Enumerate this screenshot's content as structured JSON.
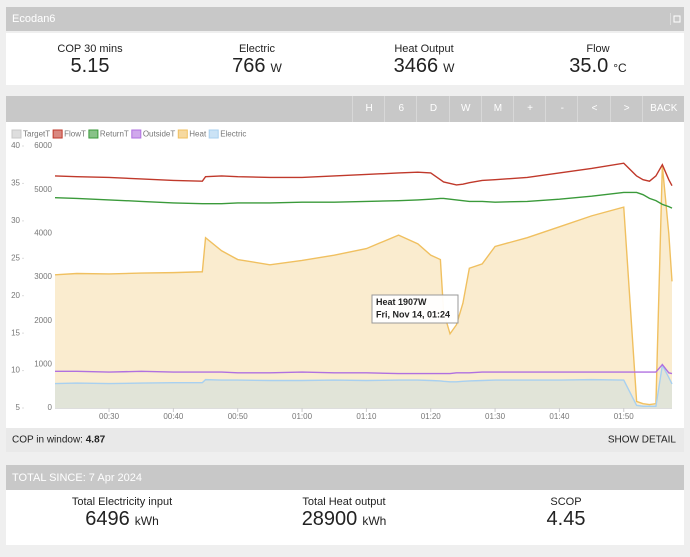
{
  "header": {
    "title": "Ecodan6"
  },
  "stats": [
    {
      "label": "COP 30 mins",
      "value": "5.15"
    },
    {
      "label": "Electric",
      "value": "766",
      "unit": "W"
    },
    {
      "label": "Heat Output",
      "value": "3466",
      "unit": "W"
    },
    {
      "label": "Flow",
      "value": "35.0",
      "unit": "°C"
    }
  ],
  "toolbar": [
    "H",
    "6",
    "D",
    "W",
    "M",
    "+",
    "-",
    "<",
    ">",
    "BACK"
  ],
  "chart_data": {
    "type": "line",
    "legend": "top-left",
    "x": [
      21.6,
      25,
      30,
      35,
      40,
      44.5,
      45,
      47.5,
      50,
      55,
      60,
      65,
      70,
      75,
      78,
      80,
      81.5,
      82,
      83,
      84,
      85,
      86,
      88,
      90,
      95,
      100,
      105,
      110,
      112,
      113,
      114,
      115,
      116,
      117,
      117.5
    ],
    "xlim": [
      21.6,
      117.5
    ],
    "xticks": [
      {
        "value": 30,
        "label": "00:30"
      },
      {
        "value": 40,
        "label": "00:40"
      },
      {
        "value": 50,
        "label": "00:50"
      },
      {
        "value": 60,
        "label": "01:00"
      },
      {
        "value": 70,
        "label": "01:10"
      },
      {
        "value": 80,
        "label": "01:20"
      },
      {
        "value": 90,
        "label": "01:30"
      },
      {
        "value": 100,
        "label": "01:40"
      },
      {
        "value": 110,
        "label": "01:50"
      }
    ],
    "ylim": [
      5,
      40
    ],
    "yticks": [
      5,
      10,
      15,
      20,
      25,
      30,
      35,
      40
    ],
    "y2lim": [
      0,
      6000
    ],
    "y2ticks": [
      0,
      1000,
      2000,
      3000,
      4000,
      5000,
      6000
    ],
    "series": [
      {
        "name": "TargetT",
        "color": "#c8c8c8",
        "values": [
          null,
          null,
          null,
          null,
          null,
          null,
          null,
          null,
          null,
          null,
          null,
          null,
          null,
          null,
          null,
          null,
          null,
          null,
          null,
          null,
          null,
          null,
          null,
          null,
          null,
          null,
          null,
          null,
          null,
          null,
          null,
          null,
          null,
          null,
          null
        ]
      },
      {
        "name": "FlowT",
        "color": "#c0392b",
        "values": [
          36.0,
          35.9,
          35.8,
          35.6,
          35.4,
          35.3,
          35.9,
          36.0,
          35.9,
          35.8,
          35.8,
          36.0,
          36.2,
          36.4,
          36.5,
          36.4,
          35.5,
          35.2,
          35.0,
          34.8,
          34.9,
          35.1,
          35.4,
          35.5,
          35.8,
          36.4,
          37.0,
          37.7,
          36.0,
          35.5,
          35.3,
          36.0,
          37.5,
          35.5,
          34.7
        ]
      },
      {
        "name": "ReturnT",
        "color": "#3a9a3a",
        "values": [
          33.1,
          33.0,
          32.8,
          32.6,
          32.4,
          32.3,
          32.3,
          32.3,
          32.4,
          32.4,
          32.5,
          32.5,
          32.6,
          32.7,
          32.8,
          32.9,
          33.0,
          33.0,
          32.9,
          32.8,
          32.7,
          32.6,
          32.6,
          32.5,
          32.6,
          32.9,
          33.3,
          33.8,
          33.8,
          33.5,
          33.0,
          32.7,
          32.2,
          31.9,
          31.7
        ]
      },
      {
        "name": "OutsideT",
        "color": "#b070e0",
        "values": [
          9.9,
          9.9,
          9.8,
          9.9,
          9.8,
          9.8,
          9.8,
          9.8,
          9.7,
          9.7,
          9.8,
          9.7,
          9.7,
          9.6,
          9.6,
          9.6,
          9.6,
          9.6,
          9.6,
          9.7,
          9.7,
          9.7,
          9.8,
          9.8,
          9.8,
          9.8,
          9.8,
          9.8,
          9.8,
          9.8,
          9.8,
          9.8,
          10.8,
          9.7,
          9.6
        ]
      },
      {
        "name": "Heat",
        "color": "#f0c060",
        "axis": "y2",
        "fill": true,
        "values": [
          3050,
          3080,
          3070,
          3090,
          3100,
          3120,
          3900,
          3600,
          3400,
          3280,
          3380,
          3500,
          3650,
          3960,
          3760,
          3500,
          3400,
          2200,
          1700,
          1907,
          2400,
          3200,
          3300,
          3700,
          3900,
          4150,
          4400,
          4600,
          150,
          100,
          80,
          100,
          5550,
          4000,
          2900
        ]
      },
      {
        "name": "Electric",
        "color": "#a8d0f0",
        "axis": "y2",
        "fill": true,
        "values": [
          560,
          570,
          560,
          570,
          580,
          580,
          650,
          640,
          640,
          630,
          630,
          640,
          630,
          640,
          640,
          630,
          620,
          610,
          600,
          600,
          610,
          620,
          630,
          640,
          640,
          640,
          650,
          640,
          60,
          40,
          40,
          40,
          980,
          700,
          550
        ]
      }
    ],
    "tooltip": {
      "title": "Heat 1907W",
      "subtitle": "Fri, Nov 14, 01:24"
    }
  },
  "window_footer": {
    "label": "COP in window:",
    "value": "4.87",
    "action": "SHOW DETAIL"
  },
  "totals": {
    "title": "TOTAL SINCE: 7 Apr 2024",
    "items": [
      {
        "label": "Total Electricity input",
        "value": "6496",
        "unit": "kWh"
      },
      {
        "label": "Total Heat output",
        "value": "28900",
        "unit": "kWh"
      },
      {
        "label": "SCOP",
        "value": "4.45"
      }
    ]
  }
}
